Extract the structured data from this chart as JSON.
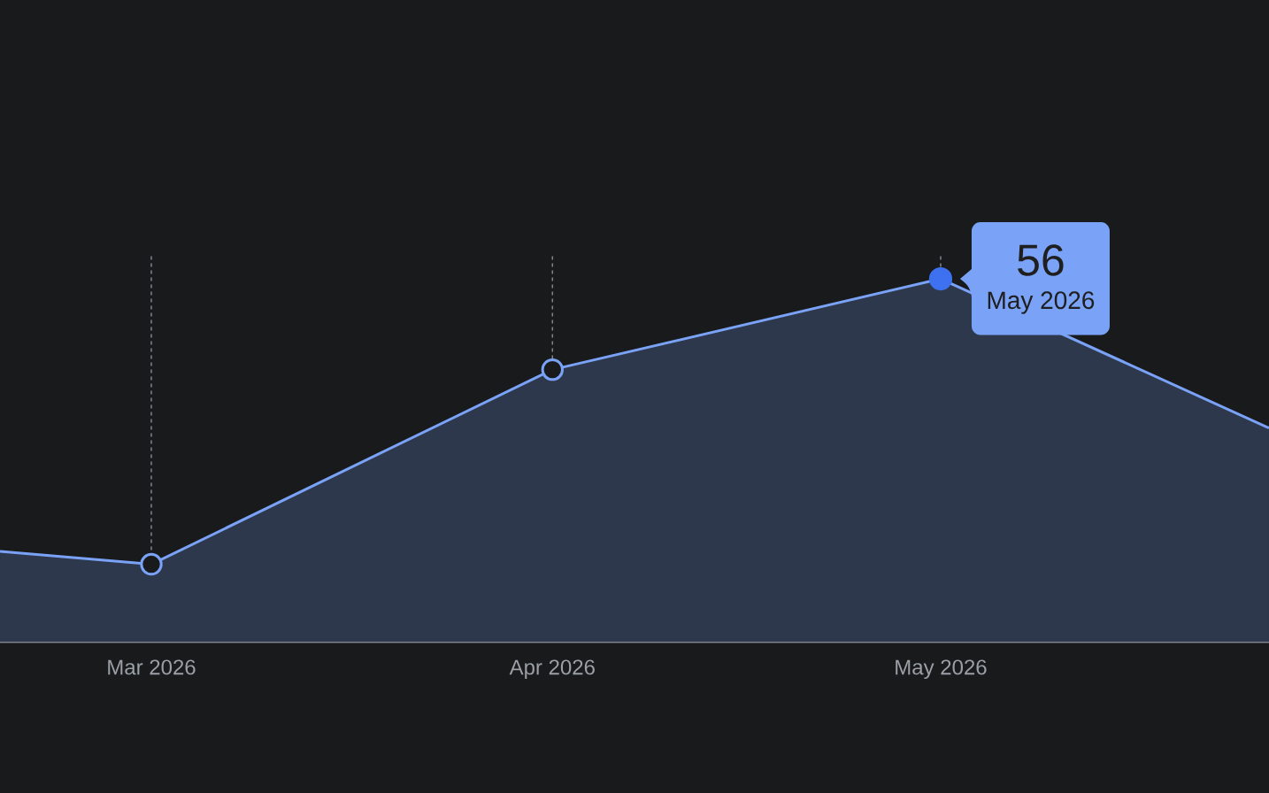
{
  "chart_data": {
    "type": "area",
    "x": [
      "2026-02-17T07:20",
      "2026-03-01",
      "2026-04-01",
      "2026-05-01",
      "2026-05-26T09:00"
    ],
    "values": [
      14,
      12,
      42,
      56,
      33
    ],
    "color": "#7aa2f7",
    "xlim": [
      "2026-02-17T07:20",
      "2026-05-26T09:00"
    ],
    "xticks": [
      {
        "value": "2026-03-01",
        "label": "Mar 2026"
      },
      {
        "value": "2026-04-01",
        "label": "Apr 2026"
      },
      {
        "value": "2026-05-01",
        "label": "May 2026"
      }
    ],
    "ylim": [
      0,
      60
    ],
    "tick_labels": "x",
    "grid": "x",
    "marker": "circle",
    "value_labels": [
      null,
      null,
      null,
      "56",
      null
    ],
    "annotations": [
      {
        "text": "May 2026",
        "x": "2026-05-01",
        "y": 56
      }
    ]
  }
}
